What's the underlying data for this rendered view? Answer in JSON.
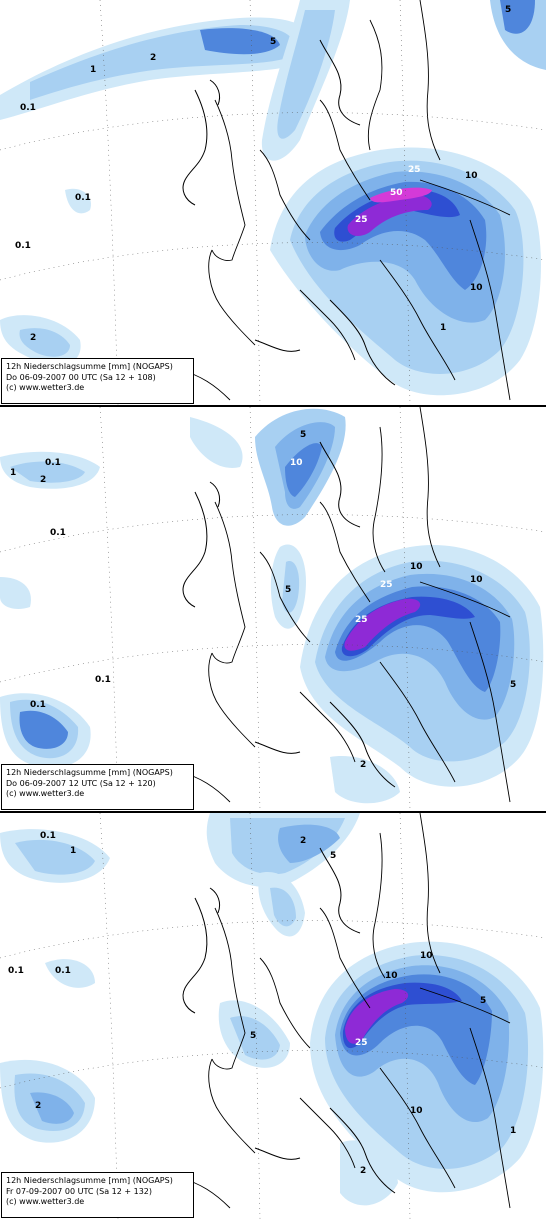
{
  "colors": {
    "p01": "#cfe8f8",
    "p1": "#a8d0f2",
    "p2": "#7fb2ea",
    "p5": "#4f86dc",
    "p10": "#2e4fd2",
    "p25": "#8e2ad6",
    "p50": "#d43ad8",
    "land": "#ffffff",
    "border": "#000000"
  },
  "panels": [
    {
      "line1": "12h Niederschlagsumme [mm] (NOGAPS)",
      "line2": "Do 06-09-2007 00  UTC (Sa 12 + 108)",
      "line3": "(c) www.wetter3.de",
      "labels": [
        "0.1",
        "1",
        "2",
        "5",
        "10",
        "25",
        "50"
      ]
    },
    {
      "line1": "12h Niederschlagsumme [mm] (NOGAPS)",
      "line2": "Do 06-09-2007 12  UTC (Sa 12 + 120)",
      "line3": "(c) www.wetter3.de",
      "labels": [
        "0.1",
        "1",
        "2",
        "5",
        "10",
        "25"
      ]
    },
    {
      "line1": "12h Niederschlagsumme [mm] (NOGAPS)",
      "line2": "Fr 07-09-2007 00  UTC (Sa 12 + 132)",
      "line3": "(c) www.wetter3.de",
      "labels": [
        "0.1",
        "1",
        "2",
        "5",
        "10",
        "25"
      ]
    }
  ]
}
